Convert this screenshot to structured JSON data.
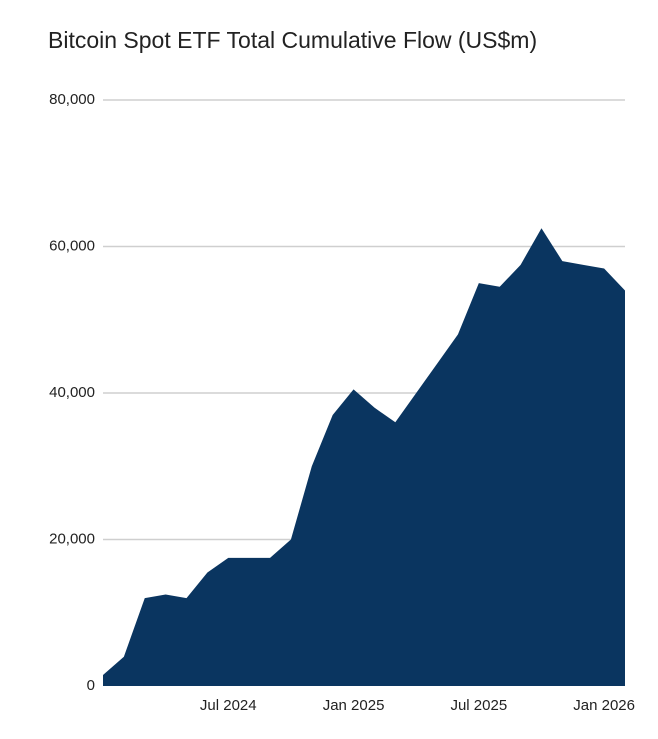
{
  "chart_data": {
    "type": "area",
    "title": "Bitcoin Spot ETF Total Cumulative Flow (US$m)",
    "x": [
      "2024-01",
      "2024-02",
      "2024-03",
      "2024-04",
      "2024-05",
      "2024-06",
      "2024-07",
      "2024-08",
      "2024-09",
      "2024-10",
      "2024-11",
      "2024-12",
      "2025-01",
      "2025-02",
      "2025-03",
      "2025-04",
      "2025-05",
      "2025-06",
      "2025-07",
      "2025-08",
      "2025-09",
      "2025-10",
      "2025-11",
      "2025-12",
      "2026-01",
      "2026-02"
    ],
    "values": [
      1500,
      4000,
      12000,
      12500,
      12000,
      15500,
      17500,
      17500,
      17500,
      20000,
      30000,
      37000,
      40500,
      38000,
      36000,
      40000,
      44000,
      48000,
      55000,
      54500,
      57500,
      62500,
      58000,
      57500,
      57000,
      54000
    ],
    "color": "#0a3560",
    "xlim": [
      "2024-01",
      "2026-02"
    ],
    "xticks": [
      {
        "value": "2024-07",
        "label": "Jul 2024"
      },
      {
        "value": "2025-01",
        "label": "Jan 2025"
      },
      {
        "value": "2025-07",
        "label": "Jul 2025"
      },
      {
        "value": "2026-01",
        "label": "Jan 2026"
      }
    ],
    "ylim": [
      0,
      80000
    ],
    "yticks": [
      0,
      {
        "value": 20000,
        "label": "20,000"
      },
      {
        "value": 40000,
        "label": "40,000"
      },
      {
        "value": 60000,
        "label": "60,000"
      },
      {
        "value": 80000,
        "label": "80,000"
      }
    ],
    "grid": true
  }
}
